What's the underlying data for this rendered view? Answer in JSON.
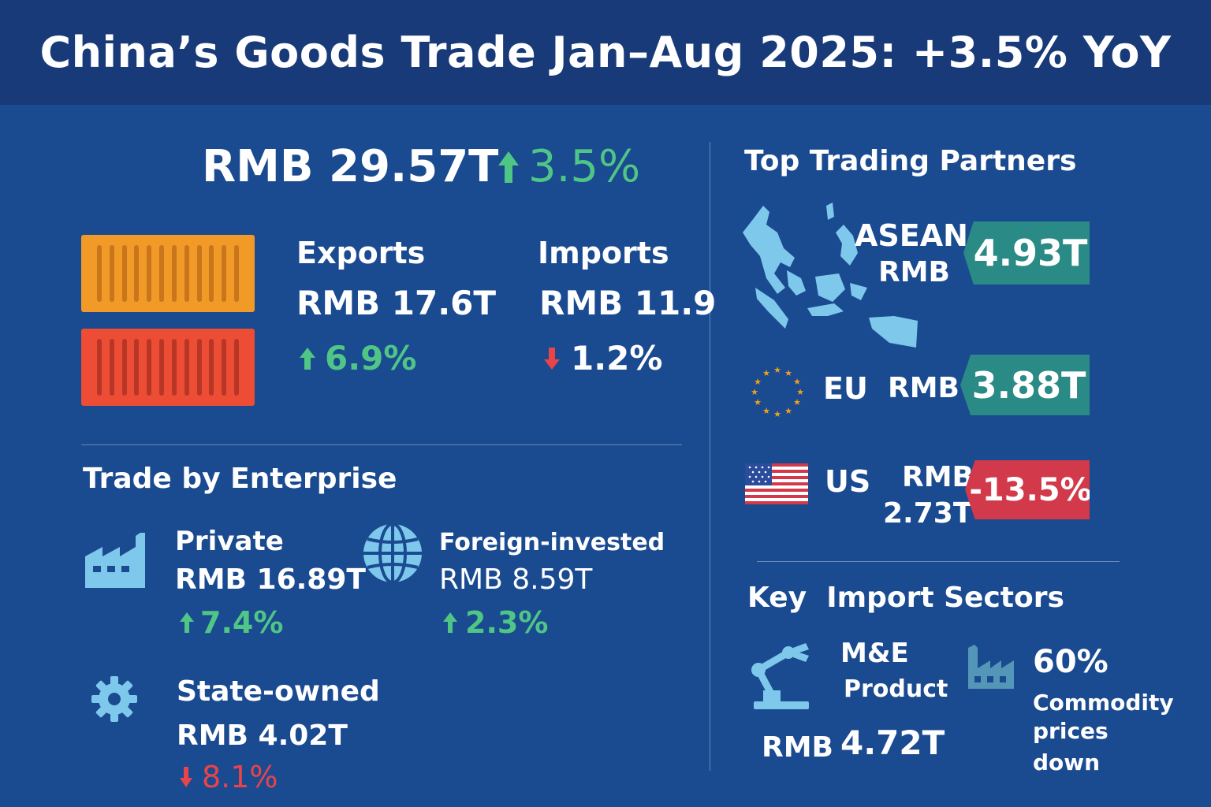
{
  "header": {
    "title": "China’s Goods Trade Jan–Aug 2025: +3.5% YoY"
  },
  "total": {
    "value": "RMB 29.57T",
    "change": "3.5%",
    "direction": "up"
  },
  "exports": {
    "label": "Exports",
    "value": "RMB 17.6T",
    "change": "6.9%",
    "direction": "up"
  },
  "imports": {
    "label": "Imports",
    "value": "RMB 11.9",
    "change": "1.2%",
    "direction": "down"
  },
  "enterprise": {
    "heading": "Trade by Enterprise",
    "private": {
      "label": "Private",
      "value": "RMB 16.89T",
      "change": "7.4%",
      "direction": "up",
      "icon": "factory-icon"
    },
    "foreign": {
      "label": "Foreign-invested",
      "value": "RMB 8.59T",
      "change": "2.3%",
      "direction": "up",
      "icon": "globe-icon"
    },
    "state": {
      "label": "State-owned",
      "value": "RMB 4.02T",
      "change": "8.1%",
      "direction": "down",
      "icon": "gear-icon"
    }
  },
  "partners": {
    "heading": "Top Trading Partners",
    "asean": {
      "name": "ASEAN",
      "currency": "RMB",
      "value": "4.93T",
      "icon": "asean-map-icon"
    },
    "eu": {
      "name": "EU",
      "currency": "RMB",
      "value": "3.88T",
      "icon": "eu-stars-icon"
    },
    "us": {
      "name": "US",
      "currency": "RMB",
      "amount": "2.73T",
      "change": "-13.5%",
      "icon": "us-flag-icon"
    }
  },
  "import_sectors": {
    "heading": "Key  Import Sectors",
    "me": {
      "label_line1": "M&E",
      "label_line2": "Product",
      "currency": "RMB",
      "value": "4.72T",
      "icon": "robot-arm-icon"
    },
    "commodity": {
      "value": "60%",
      "line1": "Commodity",
      "line2": "prices",
      "line3": "down",
      "icon": "factory-icon"
    }
  },
  "colors": {
    "background": "#1a4a90",
    "header": "#183a78",
    "green": "#4fc586",
    "red": "#e8444a",
    "teal_tag": "#2a8a86",
    "red_tag": "#d2394a",
    "icon_blue": "#7ec8ec",
    "container_orange": "#f29a28",
    "container_red": "#ec4d34"
  }
}
